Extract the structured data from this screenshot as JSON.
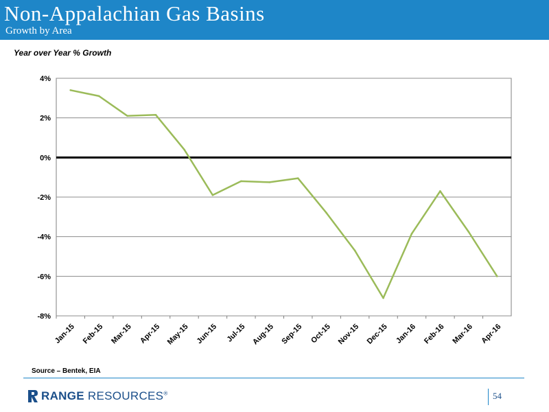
{
  "header": {
    "title": "Non-Appalachian Gas Basins",
    "subtitle": "Growth by Area"
  },
  "chart_data": {
    "type": "line",
    "title": "Year over Year % Growth",
    "xlabel": "",
    "ylabel": "",
    "categories": [
      "Jan-15",
      "Feb-15",
      "Mar-15",
      "Apr-15",
      "May-15",
      "Jun-15",
      "Jul-15",
      "Aug-15",
      "Sep-15",
      "Oct-15",
      "Nov-15",
      "Dec-15",
      "Jan-16",
      "Feb-16",
      "Mar-16",
      "Apr-16"
    ],
    "series": [
      {
        "name": "",
        "color": "#9bbb59",
        "values": [
          3.4,
          3.1,
          2.1,
          2.15,
          0.4,
          -1.9,
          -1.2,
          -1.25,
          -1.05,
          -2.8,
          -4.7,
          -7.1,
          -3.85,
          -1.7,
          -3.75,
          -6.0
        ]
      }
    ],
    "ylim": [
      -8,
      4
    ],
    "yticks": [
      4,
      2,
      0,
      -2,
      -4,
      -6,
      -8
    ],
    "ytick_labels": [
      "4%",
      "2%",
      "0%",
      "-2%",
      "-4%",
      "-6%",
      "-8%"
    ],
    "grid": true,
    "zero_line": true
  },
  "footer": {
    "source": "Source – Bentek, EIA",
    "logo_bold": "RANGE",
    "logo_rest": " RESOURCES",
    "logo_mark": "®",
    "page_number": "54"
  },
  "colors": {
    "brand_blue": "#1e86c8",
    "logo_navy": "#1b4f8a",
    "series_green": "#9bbb59"
  }
}
